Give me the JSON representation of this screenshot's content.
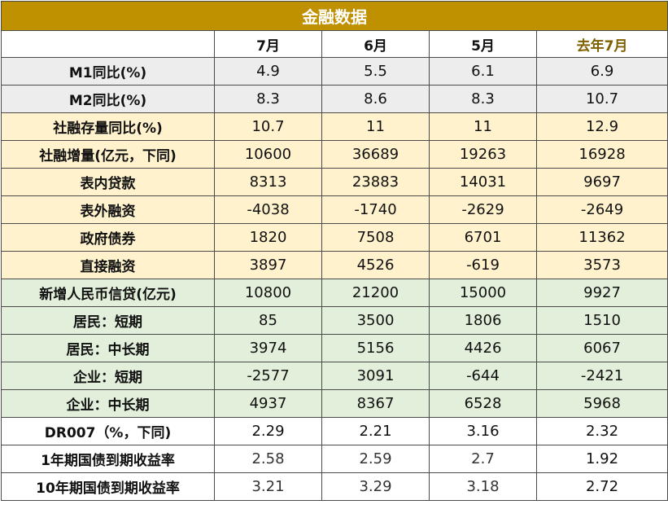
{
  "table": {
    "title": "金融数据",
    "headers": [
      "",
      "7月",
      "6月",
      "5月",
      "去年7月"
    ],
    "rows": [
      {
        "label": "M1同比(%)",
        "values": [
          "4.9",
          "5.5",
          "6.1",
          "6.9"
        ]
      },
      {
        "label": "M2同比(%)",
        "values": [
          "8.3",
          "8.6",
          "8.3",
          "10.7"
        ]
      },
      {
        "label": "社融存量同比(%)",
        "values": [
          "10.7",
          "11",
          "11",
          "12.9"
        ]
      },
      {
        "label": "社融增量(亿元，下同)",
        "values": [
          "10600",
          "36689",
          "19263",
          "16928"
        ]
      },
      {
        "label": "表内贷款",
        "values": [
          "8313",
          "23883",
          "14031",
          "9697"
        ]
      },
      {
        "label": "表外融资",
        "values": [
          "-4038",
          "-1740",
          "-2629",
          "-2649"
        ]
      },
      {
        "label": "政府债券",
        "values": [
          "1820",
          "7508",
          "6701",
          "11362"
        ]
      },
      {
        "label": "直接融资",
        "values": [
          "3897",
          "4526",
          "-619",
          "3573"
        ]
      },
      {
        "label": "新增人民币信贷(亿元)",
        "values": [
          "10800",
          "21200",
          "15000",
          "9927"
        ]
      },
      {
        "label": "居民：短期",
        "values": [
          "85",
          "3500",
          "1806",
          "1510"
        ]
      },
      {
        "label": "居民：中长期",
        "values": [
          "3974",
          "5156",
          "4426",
          "6067"
        ]
      },
      {
        "label": "企业：短期",
        "values": [
          "-2577",
          "3091",
          "-644",
          "-2421"
        ]
      },
      {
        "label": "企业：中长期",
        "values": [
          "4937",
          "8367",
          "6528",
          "5968"
        ]
      },
      {
        "label": "DR007（%，下同)",
        "values": [
          "2.29",
          "2.21",
          "3.16",
          "2.32"
        ]
      },
      {
        "label": "1年期国债到期收益率",
        "values": [
          "2.58",
          "2.59",
          "2.7",
          "1.92"
        ]
      },
      {
        "label": "10年期国债到期收益率",
        "values": [
          "3.21",
          "3.29",
          "3.18",
          "2.72"
        ]
      }
    ]
  },
  "colors": {
    "title_bg": "#bf9000",
    "gray_band": "#ededed",
    "orange_band": "#fff2cc",
    "green_band": "#e2efda",
    "highlight_header": "#7f6000"
  }
}
